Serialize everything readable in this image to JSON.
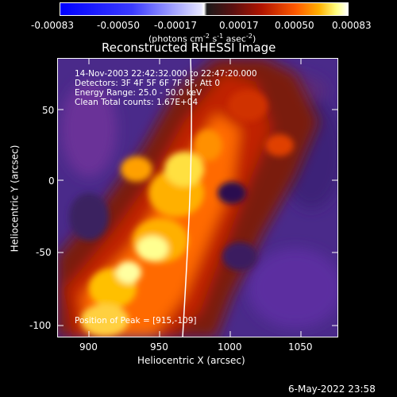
{
  "colorbar": {
    "ticks": [
      "-0.00083",
      "-0.00050",
      "-0.00017",
      "0.00017",
      "0.00050",
      "0.00083"
    ],
    "units_prefix": "(photons cm",
    "units_sup1": "-2",
    "units_mid": " s",
    "units_sup2": "-1",
    "units_mid2": " asec",
    "units_sup3": "-2",
    "units_suffix": ")"
  },
  "plot": {
    "title": "Reconstructed RHESSI Image",
    "x_label": "Heliocentric X (arcsec)",
    "y_label": "Heliocentric Y (arcsec)",
    "x_ticks": [
      "900",
      "950",
      "1000",
      "1050"
    ],
    "y_ticks": [
      "50",
      "0",
      "-50",
      "-100"
    ],
    "annotations": [
      "14-Nov-2003 22:42:32.000 to 22:47:20.000",
      "Detectors: 3F 4F 5F 6F 7F 8F, Att 0",
      "Energy Range: 25.0 - 50.0 keV",
      "Clean     Total counts: 1.67E+04"
    ],
    "position_note": "Position of Peak = [915,-109]"
  },
  "footer": {
    "date": "6-May-2022 23:58"
  },
  "colors": {
    "background": "#000000",
    "limb": "#ffffff"
  }
}
